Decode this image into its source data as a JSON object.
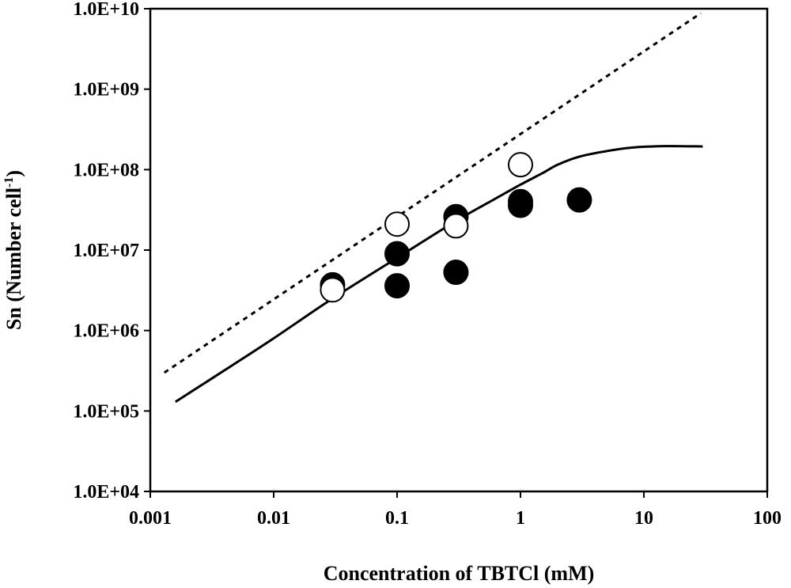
{
  "chart_data": {
    "type": "scatter",
    "title": "",
    "xlabel": "Concentration of TBTCl (mM)",
    "ylabel": {
      "main": "Sn (Number cell",
      "sup": "-1",
      "close": ")"
    },
    "x_scale": "log",
    "y_scale": "log",
    "xlim": [
      0.001,
      100
    ],
    "ylim": [
      10000,
      10000000000
    ],
    "x_ticks": [
      0.001,
      0.01,
      0.1,
      1,
      10,
      100
    ],
    "x_tick_labels": [
      "0.001",
      "0.01",
      "0.1",
      "1",
      "10",
      "100"
    ],
    "y_ticks": [
      10000,
      100000,
      1000000,
      10000000,
      100000000,
      1000000000,
      10000000000
    ],
    "y_tick_labels": [
      "1.0E+04",
      "1.0E+05",
      "1.0E+06",
      "1.0E+07",
      "1.0E+08",
      "1.0E+09",
      "1.0E+10"
    ],
    "grid": false,
    "legend": "none",
    "series": [
      {
        "name": "filled circles",
        "kind": "scatter",
        "marker": "filled-circle",
        "color": "#000000",
        "points": [
          {
            "x": 0.03,
            "y": 3700000
          },
          {
            "x": 0.1,
            "y": 9000000
          },
          {
            "x": 0.1,
            "y": 3600000
          },
          {
            "x": 0.3,
            "y": 26000000
          },
          {
            "x": 0.3,
            "y": 5300000
          },
          {
            "x": 1,
            "y": 40000000
          },
          {
            "x": 1,
            "y": 36000000
          },
          {
            "x": 3,
            "y": 42000000
          }
        ]
      },
      {
        "name": "open circles",
        "kind": "scatter",
        "marker": "open-circle",
        "color": "#000000",
        "points": [
          {
            "x": 0.03,
            "y": 3200000
          },
          {
            "x": 0.1,
            "y": 21000000
          },
          {
            "x": 0.3,
            "y": 20000000
          },
          {
            "x": 1,
            "y": 115000000
          }
        ]
      },
      {
        "name": "solid model curve",
        "kind": "line",
        "style": "solid",
        "color": "#000000",
        "points": [
          {
            "x": 0.0016,
            "y": 130000
          },
          {
            "x": 0.005,
            "y": 400000
          },
          {
            "x": 0.01,
            "y": 800000
          },
          {
            "x": 0.03,
            "y": 2500000
          },
          {
            "x": 0.1,
            "y": 8000000
          },
          {
            "x": 0.3,
            "y": 23000000
          },
          {
            "x": 0.6,
            "y": 42000000
          },
          {
            "x": 1,
            "y": 65000000
          },
          {
            "x": 1.5,
            "y": 90000000
          },
          {
            "x": 2,
            "y": 115000000
          },
          {
            "x": 3,
            "y": 145000000
          },
          {
            "x": 5,
            "y": 170000000
          },
          {
            "x": 8,
            "y": 188000000
          },
          {
            "x": 15,
            "y": 196000000
          },
          {
            "x": 30,
            "y": 194000000
          }
        ]
      },
      {
        "name": "dotted line",
        "kind": "line",
        "style": "dotted",
        "color": "#000000",
        "points": [
          {
            "x": 0.0013,
            "y": 300000
          },
          {
            "x": 29,
            "y": 8800000000
          }
        ]
      }
    ]
  }
}
